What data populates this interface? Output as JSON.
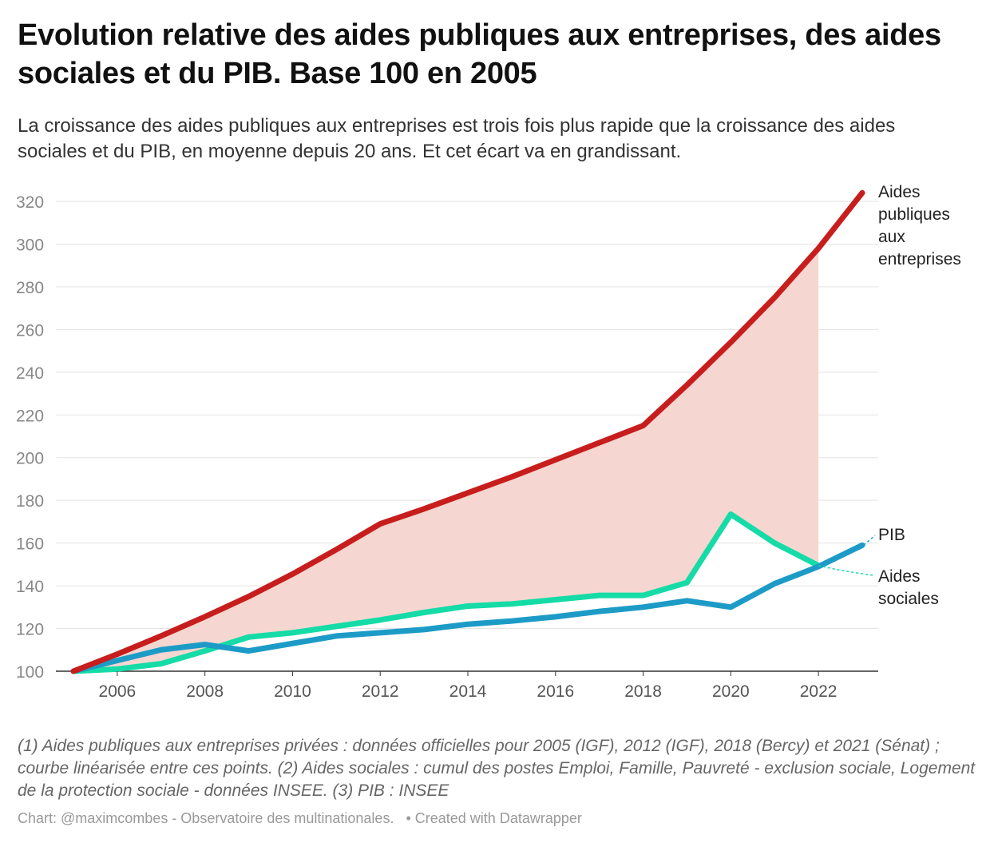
{
  "title": "Evolution relative des aides publiques aux entreprises, des aides sociales et du PIB. Base 100 en 2005",
  "subtitle": "La croissance des aides publiques aux entreprises est trois fois plus rapide que la croissance des aides sociales et du PIB, en moyenne depuis 20 ans. Et cet écart va en grandissant.",
  "notes": "(1) Aides publiques aux entreprises privées : données officielles pour 2005 (IGF), 2012 (IGF), 2018 (Bercy) et 2021 (Sénat) ; courbe linéarisée entre ces points. (2) Aides sociales : cumul des postes Emploi, Famille, Pauvreté - exclusion sociale, Logement de la protection sociale - données INSEE. (3) PIB : INSEE",
  "byline": {
    "chart": "Chart: @maximcombes - Observatoire des multinationales.",
    "tool": "• Created with Datawrapper"
  },
  "chart_data": {
    "type": "line",
    "xlim": [
      2005,
      2023
    ],
    "ylim": [
      100,
      320
    ],
    "yticks": [
      100,
      120,
      140,
      160,
      180,
      200,
      220,
      240,
      260,
      280,
      300,
      320
    ],
    "xticks": [
      2006,
      2008,
      2010,
      2012,
      2014,
      2016,
      2018,
      2020,
      2022
    ],
    "x": [
      2005,
      2006,
      2007,
      2008,
      2009,
      2010,
      2011,
      2012,
      2013,
      2014,
      2015,
      2016,
      2017,
      2018,
      2019,
      2020,
      2021,
      2022,
      2023
    ],
    "series": [
      {
        "name": "Aides publiques aux entreprises",
        "label_lines": [
          "Aides",
          "publiques",
          "aux",
          "entreprises"
        ],
        "color": "#c71e1d",
        "values": [
          100,
          108,
          116.5,
          125.5,
          135,
          145.5,
          157,
          169,
          176,
          183.5,
          191,
          199,
          207,
          215,
          234,
          254,
          275,
          298,
          324
        ]
      },
      {
        "name": "PIB",
        "label_lines": [
          "PIB"
        ],
        "color": "#1d9bc7",
        "values": [
          100,
          105,
          110,
          112.5,
          109.5,
          113,
          116.5,
          118,
          119.5,
          122,
          123.5,
          125.5,
          128,
          130,
          133,
          130,
          141,
          149,
          159
        ]
      },
      {
        "name": "Aides sociales",
        "label_lines": [
          "Aides",
          "sociales"
        ],
        "color": "#15dba7",
        "values": [
          100,
          101,
          103.5,
          109.5,
          116,
          118,
          121,
          124,
          127.5,
          130.5,
          131.5,
          133.5,
          135.5,
          135.5,
          141.5,
          173.5,
          160,
          149.5,
          null
        ]
      }
    ],
    "shaded_area": {
      "between": [
        "Aides publiques aux entreprises",
        "Aides sociales"
      ],
      "x_range": [
        2005,
        2022
      ],
      "color": "#f5d6d0"
    },
    "grid": true,
    "legend": "direct labels at right"
  }
}
